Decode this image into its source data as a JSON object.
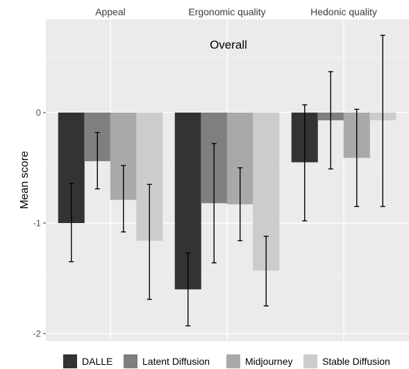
{
  "chart_data": {
    "type": "bar",
    "inner_title": "Overall",
    "ylabel": "Mean score",
    "xlabel": "",
    "categories": [
      "Appeal",
      "Ergonomic quality",
      "Hedonic quality"
    ],
    "ylim": [
      -2.05,
      0.8
    ],
    "yticks": [
      0,
      -1,
      -2
    ],
    "ytick_labels": [
      "0",
      "-1",
      "-2"
    ],
    "grid": true,
    "legend_position": "bottom",
    "series": [
      {
        "name": "DALLE",
        "color": "#333333",
        "values": [
          -1.0,
          -1.6,
          -0.45
        ],
        "err_low": [
          -1.35,
          -1.93,
          -0.98
        ],
        "err_high": [
          -0.64,
          -1.27,
          0.07
        ]
      },
      {
        "name": "Latent Diffusion",
        "color": "#7f7f7f",
        "values": [
          -0.44,
          -0.82,
          -0.07
        ],
        "err_low": [
          -0.69,
          -1.36,
          -0.51
        ],
        "err_high": [
          -0.18,
          -0.28,
          0.37
        ]
      },
      {
        "name": "Midjourney",
        "color": "#a9a9a9",
        "values": [
          -0.79,
          -0.83,
          -0.41
        ],
        "err_low": [
          -1.08,
          -1.16,
          -0.85
        ],
        "err_high": [
          -0.48,
          -0.5,
          0.03
        ]
      },
      {
        "name": "Stable Diffusion",
        "color": "#cccccc",
        "values": [
          -1.16,
          -1.43,
          -0.07
        ],
        "err_low": [
          -1.69,
          -1.75,
          -0.85
        ],
        "err_high": [
          -0.65,
          -1.12,
          0.7
        ]
      }
    ]
  }
}
